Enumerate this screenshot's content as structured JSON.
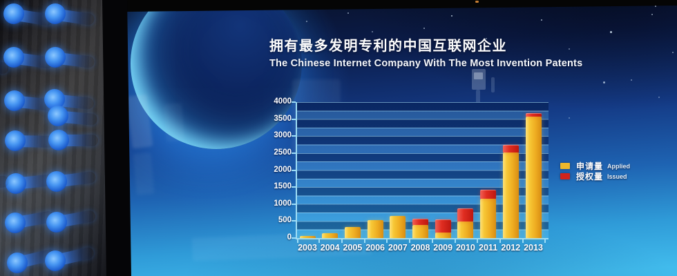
{
  "title": {
    "zh": "拥有最多发明专利的中国互联网企业",
    "en": "The Chinese Internet Company With The Most Invention Patents"
  },
  "legend": {
    "items": [
      {
        "label_zh": "申请量",
        "label_en": "Applied",
        "color": "#edb72b"
      },
      {
        "label_zh": "授权量",
        "label_en": "Issued",
        "color": "#d0241c"
      }
    ]
  },
  "chart_data": {
    "type": "bar",
    "stacked": true,
    "title": "拥有最多发明专利的中国互联网企业",
    "subtitle": "The Chinese Internet Company With The Most Invention Patents",
    "categories": [
      "2003",
      "2004",
      "2005",
      "2006",
      "2007",
      "2008",
      "2009",
      "2010",
      "2011",
      "2012",
      "2013"
    ],
    "series": [
      {
        "name_zh": "申请量",
        "name_en": "Applied",
        "color": "#edb72b",
        "values": [
          55,
          150,
          320,
          530,
          645,
          380,
          170,
          480,
          1150,
          2520,
          3570
        ]
      },
      {
        "name_zh": "授权量",
        "name_en": "Issued",
        "color": "#d0241c",
        "values": [
          0,
          0,
          0,
          0,
          0,
          160,
          360,
          370,
          250,
          200,
          80
        ]
      }
    ],
    "xlabel": "",
    "ylabel": "",
    "ylim": [
      0,
      4000
    ],
    "yticks": [
      4000,
      3500,
      3000,
      2500,
      2000,
      1500,
      1000,
      500,
      0
    ],
    "gridline_step": 250,
    "grid": "horizontal-bands",
    "legend_position": "right"
  },
  "colors": {
    "axis": "#9fdef6",
    "bar_applied": "#edb72b",
    "bar_issued": "#d0241c",
    "screen_top": "#081128",
    "screen_bottom": "#41bbec",
    "peg_glow": "#4796f2"
  }
}
